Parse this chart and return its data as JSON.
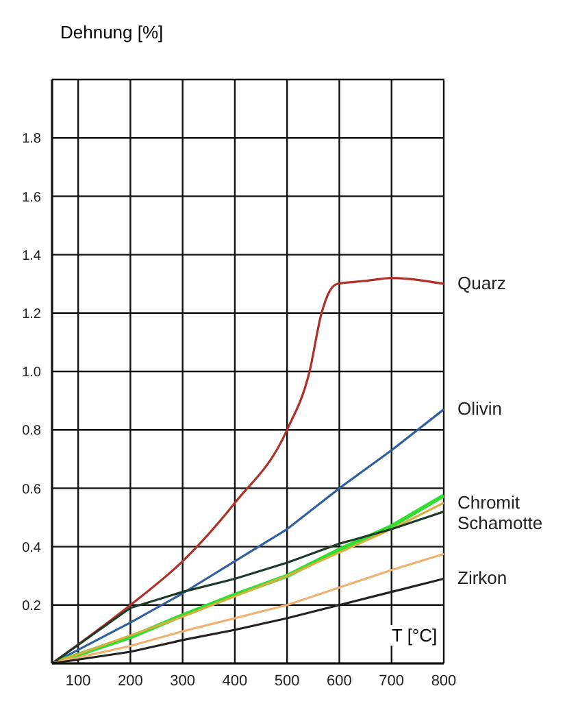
{
  "chart_data": {
    "type": "line",
    "xlabel": "T [°C]",
    "ylabel": "Dehnung [%]",
    "xlim": [
      50,
      800
    ],
    "xticks": [
      100,
      200,
      300,
      400,
      500,
      600,
      700,
      800
    ],
    "ylim": [
      0,
      2.0
    ],
    "yticks": [
      {
        "value": 0.2,
        "label": "0.2"
      },
      {
        "value": 0.4,
        "label": "0.4"
      },
      {
        "value": 0.6,
        "label": "0.6"
      },
      {
        "value": 0.8,
        "label": "0.8"
      },
      {
        "value": 1,
        "label": "1.0"
      },
      {
        "value": 1.2,
        "label": "1.2"
      },
      {
        "value": 1.4,
        "label": "1.4"
      },
      {
        "value": 1.6,
        "label": "1.6"
      },
      {
        "value": 1.8,
        "label": "1.8"
      }
    ],
    "grid": true,
    "marker": "none",
    "series": [
      {
        "name": "Quarz",
        "color": "#b03028",
        "x": [
          50,
          200,
          300,
          400,
          500,
          543,
          566,
          580,
          596,
          650,
          700,
          800
        ],
        "values": [
          0,
          0.2,
          0.35,
          0.55,
          0.8,
          1.0,
          1.2,
          1.27,
          1.3,
          1.31,
          1.32,
          1.3
        ]
      },
      {
        "name": "Olivin",
        "color": "#2f5f9f",
        "x": [
          50,
          200,
          300,
          400,
          500,
          600,
          700,
          800
        ],
        "values": [
          0,
          0.14,
          0.24,
          0.35,
          0.46,
          0.6,
          0.73,
          0.87
        ]
      },
      {
        "color": "#33dd33",
        "x": [
          50,
          200,
          300,
          400,
          500,
          600,
          700,
          800
        ],
        "values": [
          0,
          0.09,
          0.165,
          0.235,
          0.3,
          0.39,
          0.47,
          0.575
        ]
      },
      {
        "name": "Chromit",
        "color": "#d8b040",
        "x": [
          50,
          300,
          500,
          600,
          700,
          800
        ],
        "values": [
          0,
          0.16,
          0.3,
          0.38,
          0.46,
          0.55
        ]
      },
      {
        "name": "Schamotte",
        "color": "#1e3a2a",
        "x": [
          50,
          200,
          300,
          400,
          500,
          600,
          700,
          800
        ],
        "values": [
          0,
          0.19,
          0.245,
          0.29,
          0.345,
          0.41,
          0.46,
          0.52
        ]
      },
      {
        "color": "#f0b070",
        "x": [
          50,
          200,
          300,
          400,
          500,
          600,
          700,
          800
        ],
        "values": [
          0,
          0.06,
          0.11,
          0.155,
          0.2,
          0.26,
          0.32,
          0.375
        ]
      },
      {
        "name": "Zirkon",
        "color": "#222222",
        "x": [
          50,
          200,
          300,
          400,
          500,
          600,
          700,
          800
        ],
        "values": [
          0,
          0.04,
          0.08,
          0.115,
          0.155,
          0.2,
          0.245,
          0.29
        ]
      }
    ]
  }
}
